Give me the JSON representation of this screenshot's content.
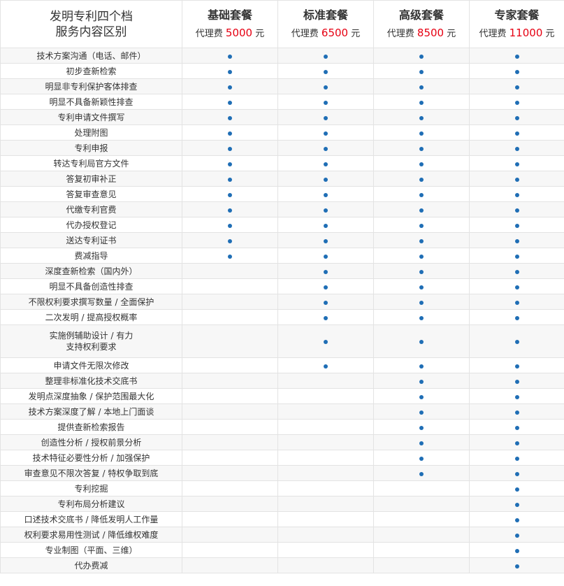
{
  "header": {
    "title_lines": [
      "发明专利四个档",
      "服务内容区别"
    ]
  },
  "plans": [
    {
      "name": "基础套餐",
      "price_label": "代理费",
      "amount": "5000",
      "unit": "元"
    },
    {
      "name": "标准套餐",
      "price_label": "代理费",
      "amount": "6500",
      "unit": "元"
    },
    {
      "name": "高级套餐",
      "price_label": "代理费",
      "amount": "8500",
      "unit": "元"
    },
    {
      "name": "专家套餐",
      "price_label": "代理费",
      "amount": "11000",
      "unit": "元"
    }
  ],
  "colors": {
    "dot": "#1f6eb5",
    "price": "#e60012",
    "row_alt": "#f7f7f7",
    "border": "#e3e3e3"
  },
  "dot_icon": "bullet-dot-icon",
  "features": [
    {
      "lines": [
        "技术方案沟通（电话、邮件）"
      ],
      "included": [
        true,
        true,
        true,
        true
      ]
    },
    {
      "lines": [
        "初步查新检索"
      ],
      "included": [
        true,
        true,
        true,
        true
      ]
    },
    {
      "lines": [
        "明显非专利保护客体排查"
      ],
      "included": [
        true,
        true,
        true,
        true
      ]
    },
    {
      "lines": [
        "明显不具备新颖性排查"
      ],
      "included": [
        true,
        true,
        true,
        true
      ]
    },
    {
      "lines": [
        "专利申请文件撰写"
      ],
      "included": [
        true,
        true,
        true,
        true
      ]
    },
    {
      "lines": [
        "处理附图"
      ],
      "included": [
        true,
        true,
        true,
        true
      ]
    },
    {
      "lines": [
        "专利申报"
      ],
      "included": [
        true,
        true,
        true,
        true
      ]
    },
    {
      "lines": [
        "转达专利局官方文件"
      ],
      "included": [
        true,
        true,
        true,
        true
      ]
    },
    {
      "lines": [
        "答复初审补正"
      ],
      "included": [
        true,
        true,
        true,
        true
      ]
    },
    {
      "lines": [
        "答复审查意见"
      ],
      "included": [
        true,
        true,
        true,
        true
      ]
    },
    {
      "lines": [
        "代缴专利官费"
      ],
      "included": [
        true,
        true,
        true,
        true
      ]
    },
    {
      "lines": [
        "代办授权登记"
      ],
      "included": [
        true,
        true,
        true,
        true
      ]
    },
    {
      "lines": [
        "送达专利证书"
      ],
      "included": [
        true,
        true,
        true,
        true
      ]
    },
    {
      "lines": [
        "费减指导"
      ],
      "included": [
        true,
        true,
        true,
        true
      ]
    },
    {
      "lines": [
        "深度查新检索（国内外）"
      ],
      "included": [
        false,
        true,
        true,
        true
      ]
    },
    {
      "lines": [
        "明显不具备创造性排查"
      ],
      "included": [
        false,
        true,
        true,
        true
      ]
    },
    {
      "lines": [
        "不限权利要求撰写数量 / 全面保护"
      ],
      "included": [
        false,
        true,
        true,
        true
      ]
    },
    {
      "lines": [
        "二次发明 / 提高授权概率"
      ],
      "included": [
        false,
        true,
        true,
        true
      ]
    },
    {
      "lines": [
        "实施例辅助设计 / 有力",
        "支持权利要求"
      ],
      "included": [
        false,
        true,
        true,
        true
      ]
    },
    {
      "lines": [
        "申请文件无限次修改"
      ],
      "included": [
        false,
        true,
        true,
        true
      ]
    },
    {
      "lines": [
        "整理非标准化技术交底书"
      ],
      "included": [
        false,
        false,
        true,
        true
      ]
    },
    {
      "lines": [
        "发明点深度抽象 / 保护范围最大化"
      ],
      "included": [
        false,
        false,
        true,
        true
      ]
    },
    {
      "lines": [
        "技术方案深度了解 / 本地上门面谈"
      ],
      "included": [
        false,
        false,
        true,
        true
      ]
    },
    {
      "lines": [
        "提供查新检索报告"
      ],
      "included": [
        false,
        false,
        true,
        true
      ]
    },
    {
      "lines": [
        "创造性分析 / 授权前景分析"
      ],
      "included": [
        false,
        false,
        true,
        true
      ]
    },
    {
      "lines": [
        "技术特征必要性分析 / 加强保护"
      ],
      "included": [
        false,
        false,
        true,
        true
      ]
    },
    {
      "lines": [
        "审查意见不限次答复 / 特权争取到底"
      ],
      "included": [
        false,
        false,
        true,
        true
      ]
    },
    {
      "lines": [
        "专利挖掘"
      ],
      "included": [
        false,
        false,
        false,
        true
      ]
    },
    {
      "lines": [
        "专利布局分析建议"
      ],
      "included": [
        false,
        false,
        false,
        true
      ]
    },
    {
      "lines": [
        "口述技术交底书 / 降低发明人工作量"
      ],
      "included": [
        false,
        false,
        false,
        true
      ]
    },
    {
      "lines": [
        "权利要求易用性测试 / 降低维权难度"
      ],
      "included": [
        false,
        false,
        false,
        true
      ]
    },
    {
      "lines": [
        "专业制图（平面、三维）"
      ],
      "included": [
        false,
        false,
        false,
        true
      ]
    },
    {
      "lines": [
        "代办费减"
      ],
      "included": [
        false,
        false,
        false,
        true
      ]
    }
  ]
}
